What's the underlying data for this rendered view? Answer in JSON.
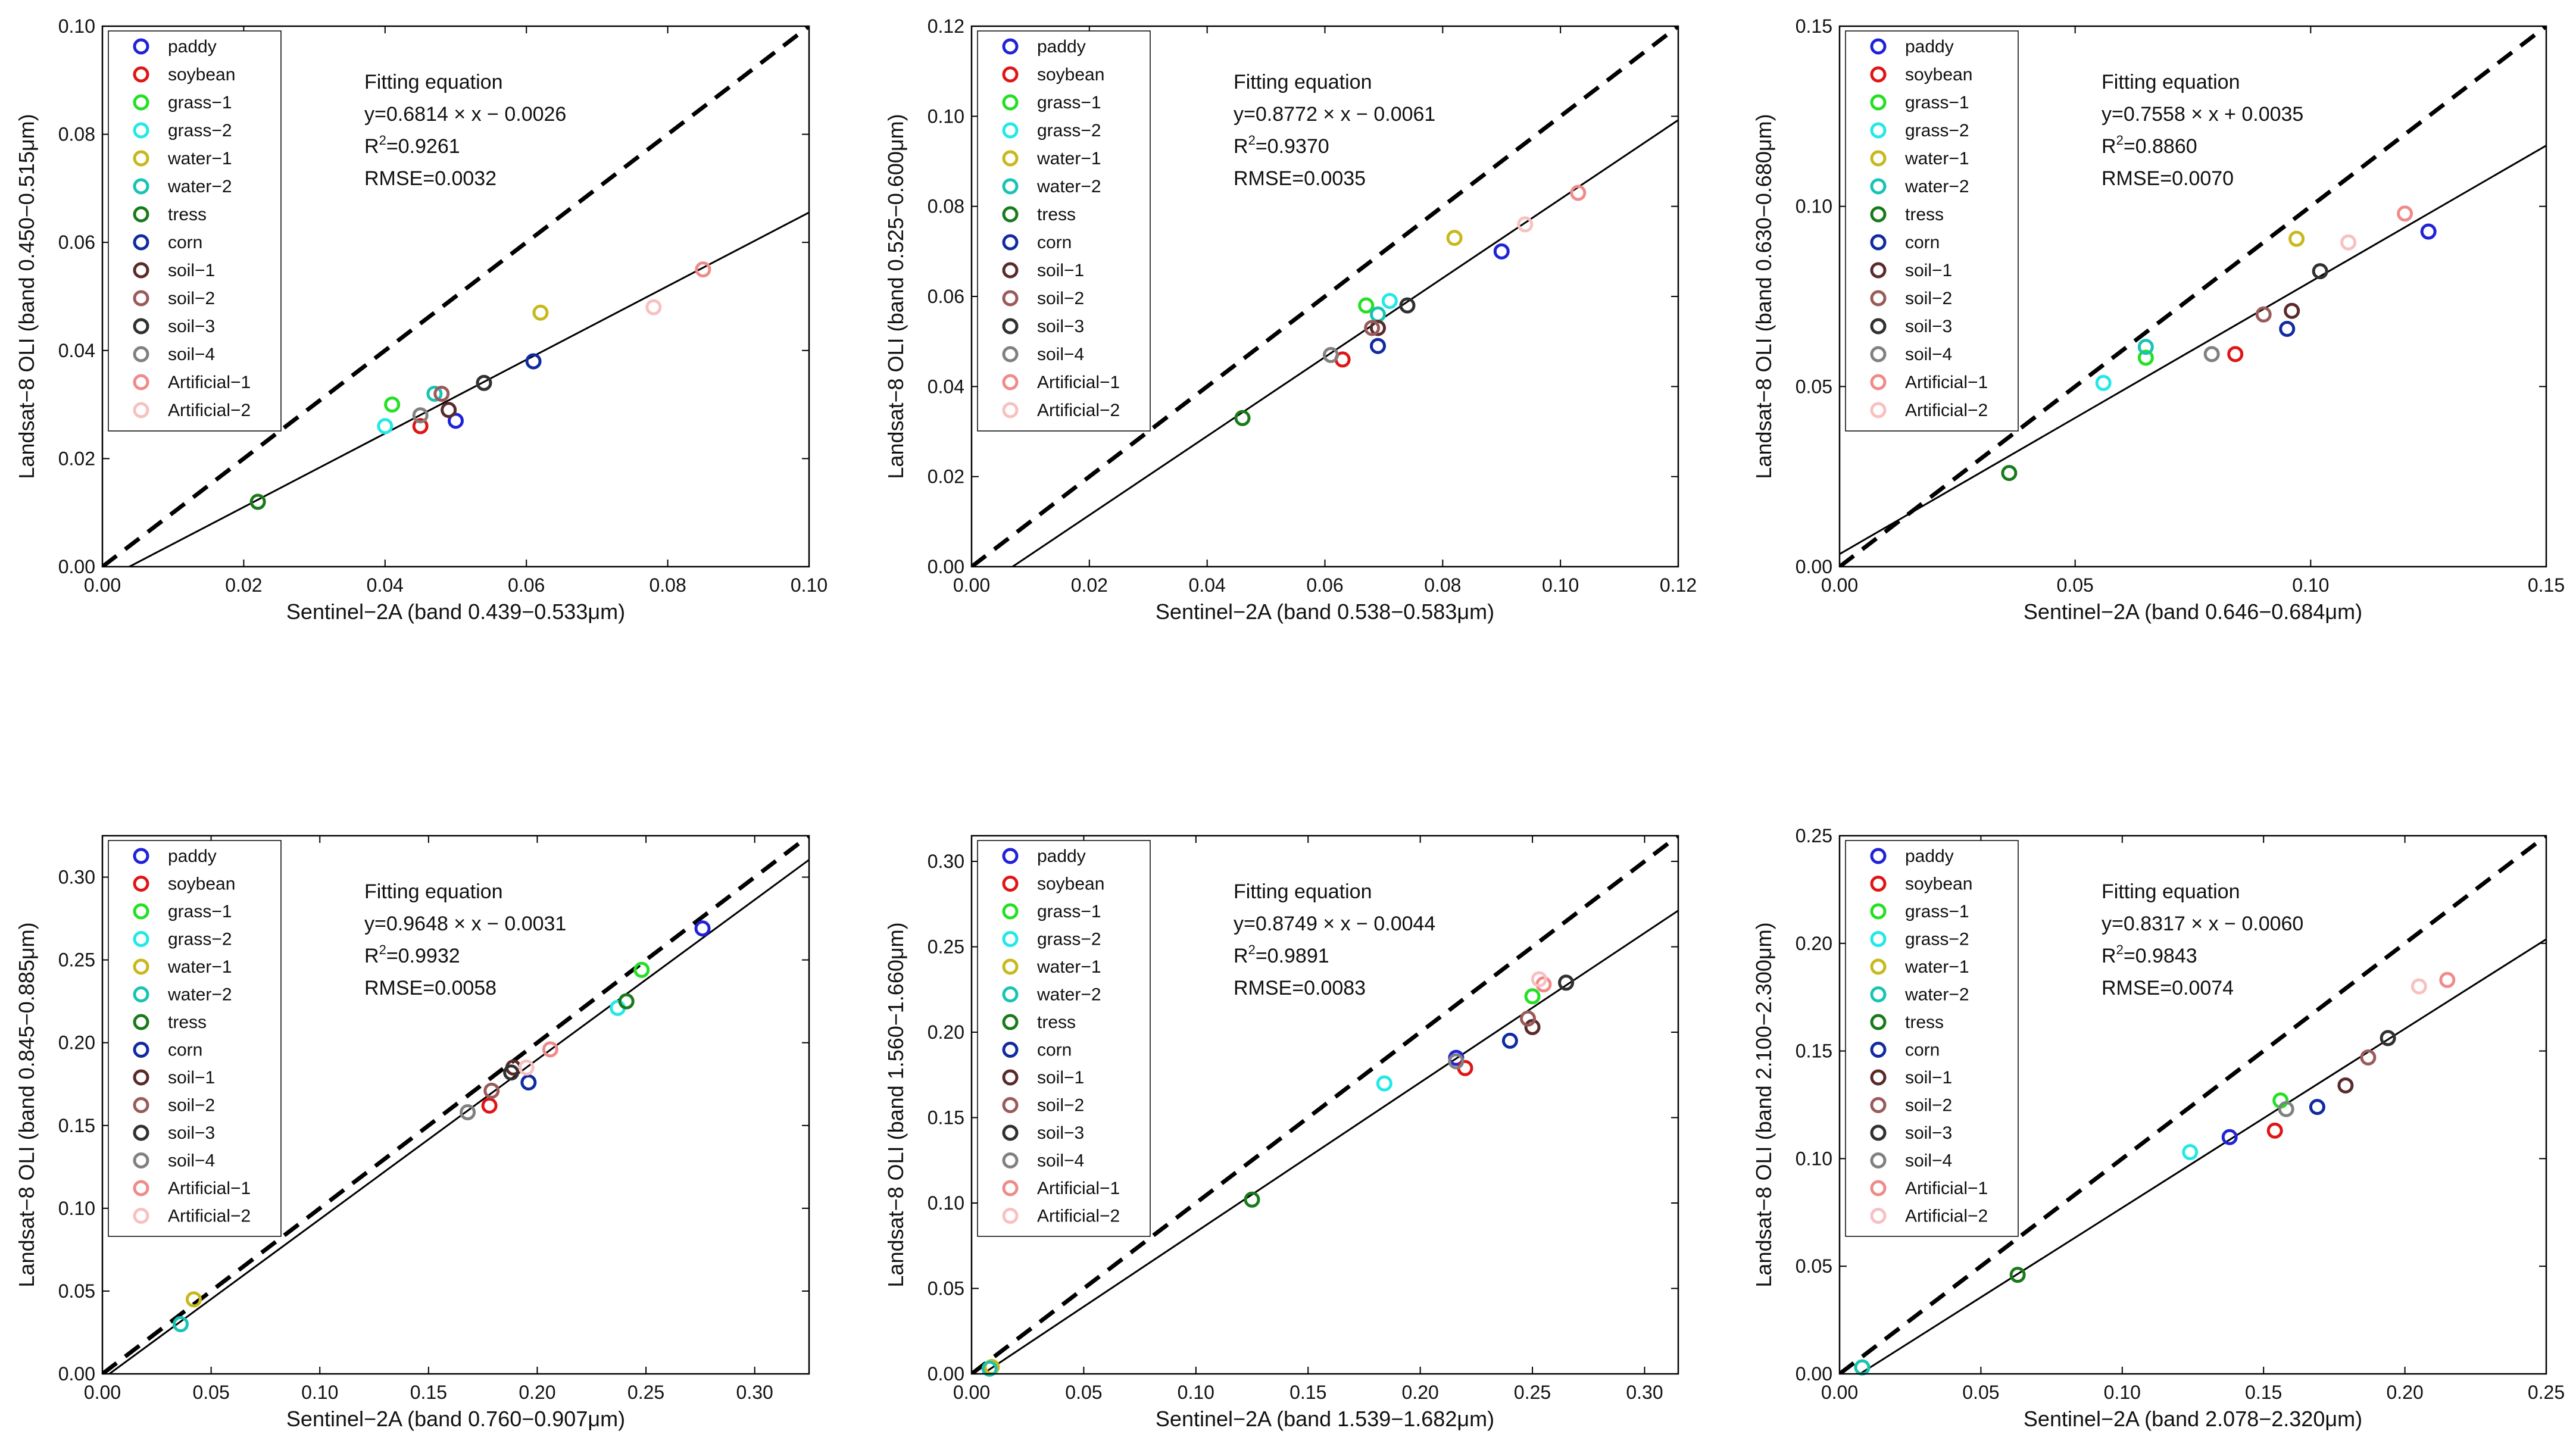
{
  "chart_data": [
    {
      "type": "scatter",
      "xlabel": "Sentinel−2A (band 0.439−0.533μm)",
      "ylabel": "Landsat−8 OLI (band 0.450−0.515μm)",
      "xlim": [
        0,
        0.1
      ],
      "ylim": [
        0,
        0.1
      ],
      "xticks": [
        "0.00",
        "0.02",
        "0.04",
        "0.06",
        "0.08",
        "0.10"
      ],
      "yticks": [
        "0.00",
        "0.02",
        "0.04",
        "0.06",
        "0.08",
        "0.10"
      ],
      "fit": {
        "slope": 0.6814,
        "intercept": -0.0026
      },
      "annotation": {
        "title": "Fitting equation",
        "equation": "y=0.6814 × x − 0.0026",
        "r2_label": "R",
        "r2_value": "=0.9261",
        "rmse": "RMSE=0.0032"
      },
      "points": [
        [
          0.05,
          0.027
        ],
        [
          0.045,
          0.026
        ],
        [
          0.041,
          0.03
        ],
        [
          0.04,
          0.026
        ],
        [
          0.062,
          0.047
        ],
        [
          0.047,
          0.032
        ],
        [
          0.022,
          0.012
        ],
        [
          0.061,
          0.038
        ],
        [
          0.049,
          0.029
        ],
        [
          0.048,
          0.032
        ],
        [
          0.054,
          0.034
        ],
        [
          0.045,
          0.028
        ],
        [
          0.085,
          0.055
        ],
        [
          0.078,
          0.048
        ]
      ]
    },
    {
      "type": "scatter",
      "xlabel": "Sentinel−2A (band 0.538−0.583μm)",
      "ylabel": "Landsat−8 OLI (band 0.525−0.600μm)",
      "xlim": [
        0,
        0.12
      ],
      "ylim": [
        0,
        0.12
      ],
      "xticks": [
        "0.00",
        "0.02",
        "0.04",
        "0.06",
        "0.08",
        "0.10",
        "0.12"
      ],
      "yticks": [
        "0.00",
        "0.02",
        "0.04",
        "0.06",
        "0.08",
        "0.10",
        "0.12"
      ],
      "fit": {
        "slope": 0.8772,
        "intercept": -0.0061
      },
      "annotation": {
        "title": "Fitting equation",
        "equation": "y=0.8772 × x − 0.0061",
        "r2_label": "R",
        "r2_value": "=0.9370",
        "rmse": "RMSE=0.0035"
      },
      "points": [
        [
          0.09,
          0.07
        ],
        [
          0.063,
          0.046
        ],
        [
          0.067,
          0.058
        ],
        [
          0.071,
          0.059
        ],
        [
          0.082,
          0.073
        ],
        [
          0.069,
          0.056
        ],
        [
          0.046,
          0.033
        ],
        [
          0.069,
          0.049
        ],
        [
          0.069,
          0.053
        ],
        [
          0.068,
          0.053
        ],
        [
          0.074,
          0.058
        ],
        [
          0.061,
          0.047
        ],
        [
          0.103,
          0.083
        ],
        [
          0.094,
          0.076
        ]
      ]
    },
    {
      "type": "scatter",
      "xlabel": "Sentinel−2A (band 0.646−0.684μm)",
      "ylabel": "Landsat−8 OLI (band 0.630−0.680μm)",
      "xlim": [
        0,
        0.15
      ],
      "ylim": [
        0,
        0.15
      ],
      "xticks": [
        "0.00",
        "0.05",
        "0.10",
        "0.15"
      ],
      "yticks": [
        "0.00",
        "0.05",
        "0.10",
        "0.15"
      ],
      "fit": {
        "slope": 0.7558,
        "intercept": 0.0035
      },
      "annotation": {
        "title": "Fitting equation",
        "equation": "y=0.7558 × x + 0.0035",
        "r2_label": "R",
        "r2_value": "=0.8860",
        "rmse": "RMSE=0.0070"
      },
      "points": [
        [
          0.125,
          0.093
        ],
        [
          0.084,
          0.059
        ],
        [
          0.065,
          0.058
        ],
        [
          0.056,
          0.051
        ],
        [
          0.097,
          0.091
        ],
        [
          0.065,
          0.061
        ],
        [
          0.036,
          0.026
        ],
        [
          0.095,
          0.066
        ],
        [
          0.096,
          0.071
        ],
        [
          0.09,
          0.07
        ],
        [
          0.102,
          0.082
        ],
        [
          0.079,
          0.059
        ],
        [
          0.12,
          0.098
        ],
        [
          0.108,
          0.09
        ]
      ]
    },
    {
      "type": "scatter",
      "xlabel": "Sentinel−2A (band 0.760−0.907μm)",
      "ylabel": "Landsat−8 OLI (band 0.845−0.885μm)",
      "xlim": [
        0,
        0.325
      ],
      "ylim": [
        0,
        0.325
      ],
      "xticks": [
        "0.00",
        "0.05",
        "0.10",
        "0.15",
        "0.20",
        "0.25",
        "0.30"
      ],
      "yticks": [
        "0.00",
        "0.05",
        "0.10",
        "0.15",
        "0.20",
        "0.25",
        "0.30"
      ],
      "fit": {
        "slope": 0.9648,
        "intercept": -0.0031
      },
      "annotation": {
        "title": "Fitting equation",
        "equation": "y=0.9648 × x − 0.0031",
        "r2_label": "R",
        "r2_value": "=0.9932",
        "rmse": "RMSE=0.0058"
      },
      "points": [
        [
          0.276,
          0.269
        ],
        [
          0.178,
          0.162
        ],
        [
          0.248,
          0.244
        ],
        [
          0.237,
          0.221
        ],
        [
          0.042,
          0.045
        ],
        [
          0.036,
          0.03
        ],
        [
          0.241,
          0.225
        ],
        [
          0.196,
          0.176
        ],
        [
          0.189,
          0.185
        ],
        [
          0.179,
          0.171
        ],
        [
          0.188,
          0.182
        ],
        [
          0.168,
          0.158
        ],
        [
          0.206,
          0.196
        ],
        [
          0.195,
          0.185
        ]
      ]
    },
    {
      "type": "scatter",
      "xlabel": "Sentinel−2A (band 1.539−1.682μm)",
      "ylabel": "Landsat−8 OLI (band 1.560−1.660μm)",
      "xlim": [
        0,
        0.315
      ],
      "ylim": [
        0,
        0.315
      ],
      "xticks": [
        "0.00",
        "0.05",
        "0.10",
        "0.15",
        "0.20",
        "0.25",
        "0.30"
      ],
      "yticks": [
        "0.00",
        "0.05",
        "0.10",
        "0.15",
        "0.20",
        "0.25",
        "0.30"
      ],
      "fit": {
        "slope": 0.8749,
        "intercept": -0.0044
      },
      "annotation": {
        "title": "Fitting equation",
        "equation": "y=0.8749 × x − 0.0044",
        "r2_label": "R",
        "r2_value": "=0.9891",
        "rmse": "RMSE=0.0083"
      },
      "points": [
        [
          0.216,
          0.185
        ],
        [
          0.22,
          0.179
        ],
        [
          0.25,
          0.221
        ],
        [
          0.184,
          0.17
        ],
        [
          0.009,
          0.004
        ],
        [
          0.008,
          0.003
        ],
        [
          0.125,
          0.102
        ],
        [
          0.24,
          0.195
        ],
        [
          0.25,
          0.203
        ],
        [
          0.248,
          0.208
        ],
        [
          0.265,
          0.229
        ],
        [
          0.216,
          0.183
        ],
        [
          0.255,
          0.228
        ],
        [
          0.253,
          0.231
        ]
      ]
    },
    {
      "type": "scatter",
      "xlabel": "Sentinel−2A (band 2.078−2.320μm)",
      "ylabel": "Landsat−8 OLI (band 2.100−2.300μm)",
      "xlim": [
        0,
        0.25
      ],
      "ylim": [
        0,
        0.25
      ],
      "xticks": [
        "0.00",
        "0.05",
        "0.10",
        "0.15",
        "0.20",
        "0.25"
      ],
      "yticks": [
        "0.00",
        "0.05",
        "0.10",
        "0.15",
        "0.20",
        "0.25"
      ],
      "fit": {
        "slope": 0.8317,
        "intercept": -0.006
      },
      "annotation": {
        "title": "Fitting equation",
        "equation": "y=0.8317 × x − 0.0060",
        "r2_label": "R",
        "r2_value": "=0.9843",
        "rmse": "RMSE=0.0074"
      },
      "points": [
        [
          0.138,
          0.11
        ],
        [
          0.154,
          0.113
        ],
        [
          0.156,
          0.127
        ],
        [
          0.124,
          0.103
        ],
        [
          0.008,
          0.003
        ],
        [
          0.008,
          0.003
        ],
        [
          0.063,
          0.046
        ],
        [
          0.169,
          0.124
        ],
        [
          0.179,
          0.134
        ],
        [
          0.187,
          0.147
        ],
        [
          0.194,
          0.156
        ],
        [
          0.158,
          0.123
        ],
        [
          0.215,
          0.183
        ],
        [
          0.205,
          0.18
        ]
      ]
    }
  ],
  "legend": {
    "labels": [
      "paddy",
      "soybean",
      "grass−1",
      "grass−2",
      "water−1",
      "water−2",
      "tress",
      "corn",
      "soil−1",
      "soil−2",
      "soil−3",
      "soil−4",
      "Artificial−1",
      "Artificial−2"
    ],
    "colors": [
      "#1f22d8",
      "#e01515",
      "#22e022",
      "#22e8e8",
      "#c8b81a",
      "#17c4b4",
      "#1a7a1a",
      "#102aa0",
      "#5a2a2a",
      "#9a5a5a",
      "#303030",
      "#808080",
      "#f08a8a",
      "#f8c0c0"
    ]
  }
}
